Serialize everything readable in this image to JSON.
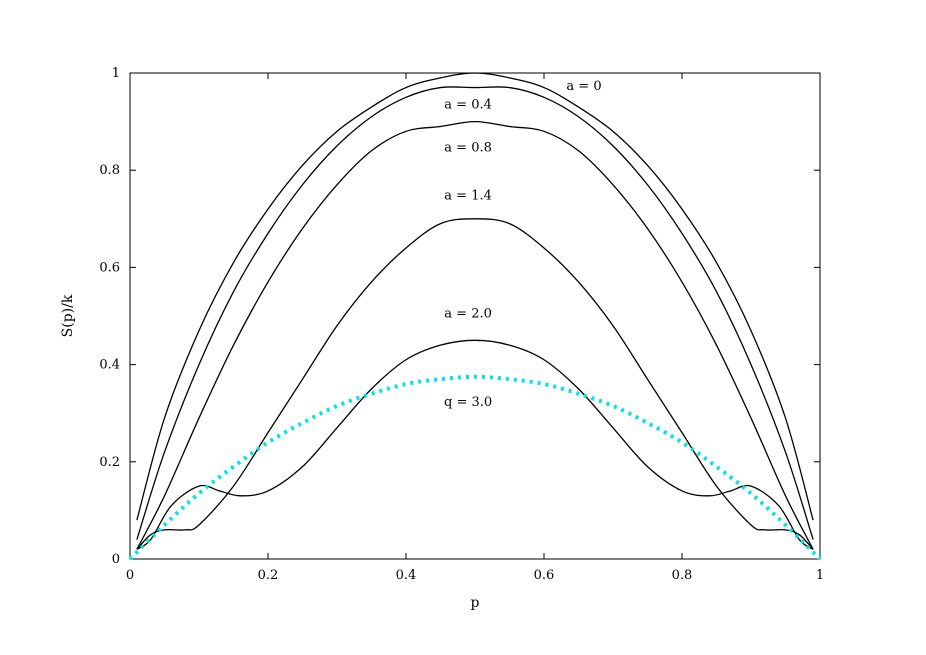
{
  "chart_data": {
    "type": "line",
    "title": "",
    "xlabel": "p",
    "ylabel": "S(p)/k",
    "xlim": [
      0,
      1
    ],
    "ylim": [
      0,
      1
    ],
    "x_ticks": [
      "0",
      "0.2",
      "0.4",
      "0.6",
      "0.8",
      "1"
    ],
    "y_ticks": [
      "0",
      "0.2",
      "0.4",
      "0.6",
      "0.8",
      "1"
    ],
    "grid": false,
    "legend": "none",
    "series": [
      {
        "name": "a = 0",
        "color": "#000000",
        "style": "solid",
        "x": [
          0.01,
          0.05,
          0.1,
          0.15,
          0.2,
          0.25,
          0.3,
          0.35,
          0.4,
          0.45,
          0.5,
          0.55,
          0.6,
          0.65,
          0.7,
          0.75,
          0.8,
          0.85,
          0.9,
          0.95,
          0.99
        ],
        "y": [
          0.08,
          0.29,
          0.47,
          0.61,
          0.72,
          0.81,
          0.88,
          0.93,
          0.97,
          0.99,
          1.0,
          0.99,
          0.97,
          0.93,
          0.88,
          0.81,
          0.72,
          0.61,
          0.47,
          0.29,
          0.08
        ]
      },
      {
        "name": "a = 0.4",
        "color": "#000000",
        "style": "solid",
        "x": [
          0.01,
          0.05,
          0.1,
          0.15,
          0.2,
          0.25,
          0.3,
          0.35,
          0.4,
          0.45,
          0.5,
          0.55,
          0.6,
          0.65,
          0.7,
          0.75,
          0.8,
          0.85,
          0.9,
          0.95,
          0.99
        ],
        "y": [
          0.04,
          0.22,
          0.4,
          0.55,
          0.67,
          0.77,
          0.85,
          0.91,
          0.95,
          0.97,
          0.97,
          0.97,
          0.95,
          0.91,
          0.85,
          0.77,
          0.67,
          0.55,
          0.4,
          0.22,
          0.04
        ]
      },
      {
        "name": "a = 0.8",
        "color": "#000000",
        "style": "solid",
        "x": [
          0.01,
          0.05,
          0.1,
          0.15,
          0.2,
          0.25,
          0.3,
          0.35,
          0.4,
          0.45,
          0.5,
          0.55,
          0.6,
          0.65,
          0.7,
          0.75,
          0.8,
          0.85,
          0.9,
          0.95,
          0.99
        ],
        "y": [
          0.02,
          0.13,
          0.29,
          0.44,
          0.57,
          0.68,
          0.77,
          0.84,
          0.88,
          0.89,
          0.9,
          0.89,
          0.88,
          0.84,
          0.77,
          0.68,
          0.57,
          0.44,
          0.29,
          0.13,
          0.02
        ]
      },
      {
        "name": "a = 1.4",
        "color": "#000000",
        "style": "solid",
        "x": [
          0.01,
          0.03,
          0.05,
          0.08,
          0.1,
          0.15,
          0.2,
          0.25,
          0.3,
          0.35,
          0.4,
          0.45,
          0.5,
          0.55,
          0.6,
          0.65,
          0.7,
          0.75,
          0.8,
          0.85,
          0.9,
          0.92,
          0.95,
          0.97,
          0.99
        ],
        "y": [
          0.02,
          0.05,
          0.06,
          0.06,
          0.07,
          0.15,
          0.26,
          0.37,
          0.48,
          0.57,
          0.64,
          0.69,
          0.7,
          0.69,
          0.64,
          0.57,
          0.48,
          0.37,
          0.26,
          0.15,
          0.07,
          0.06,
          0.06,
          0.05,
          0.02
        ]
      },
      {
        "name": "a = 2.0",
        "color": "#000000",
        "style": "solid",
        "x": [
          0.01,
          0.03,
          0.06,
          0.1,
          0.13,
          0.16,
          0.2,
          0.25,
          0.3,
          0.35,
          0.4,
          0.45,
          0.5,
          0.55,
          0.6,
          0.65,
          0.7,
          0.75,
          0.8,
          0.84,
          0.87,
          0.9,
          0.94,
          0.97,
          0.99
        ],
        "y": [
          0.02,
          0.04,
          0.11,
          0.15,
          0.14,
          0.13,
          0.14,
          0.19,
          0.27,
          0.35,
          0.41,
          0.44,
          0.45,
          0.44,
          0.41,
          0.35,
          0.27,
          0.19,
          0.14,
          0.13,
          0.14,
          0.15,
          0.11,
          0.04,
          0.02
        ]
      },
      {
        "name": "q = 3.0",
        "color": "#00e5e5",
        "style": "dotted",
        "x": [
          0.0,
          0.05,
          0.1,
          0.15,
          0.2,
          0.25,
          0.3,
          0.35,
          0.4,
          0.45,
          0.5,
          0.55,
          0.6,
          0.65,
          0.7,
          0.75,
          0.8,
          0.85,
          0.9,
          0.95,
          1.0
        ],
        "y": [
          0.0,
          0.07,
          0.135,
          0.19,
          0.24,
          0.28,
          0.315,
          0.34,
          0.36,
          0.37,
          0.375,
          0.37,
          0.36,
          0.34,
          0.315,
          0.28,
          0.24,
          0.19,
          0.135,
          0.07,
          0.0
        ]
      }
    ]
  }
}
